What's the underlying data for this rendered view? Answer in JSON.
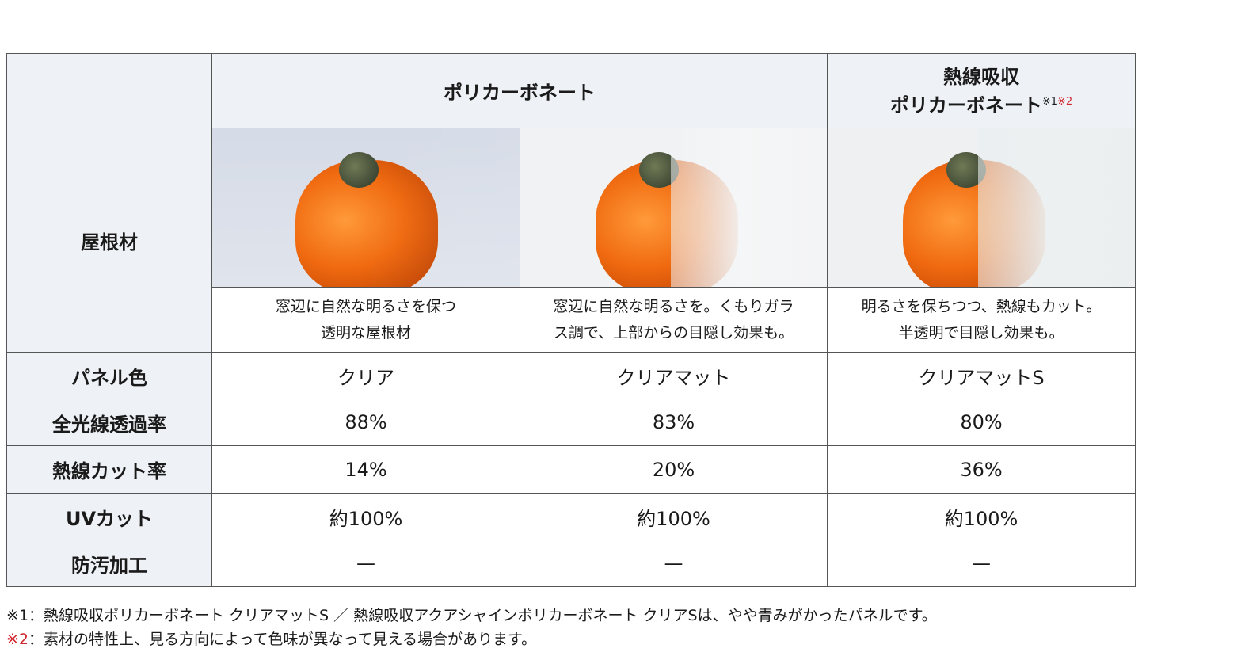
{
  "header": {
    "col1": "ポリカーボネート",
    "col2_line1": "熱線吸収",
    "col2_line2": "ポリカーボネート",
    "col2_note1": "※1",
    "col2_note2": "※2"
  },
  "rows": {
    "roof_label": "屋根材",
    "descriptions": [
      "窓辺に自然な明るさを保つ\n透明な屋根材",
      "窓辺に自然な明るさを。くもりガラ\nス調で、上部からの目隠し効果も。",
      "明るさを保ちつつ、熱線もカット。\n半透明で目隠し効果も。"
    ],
    "data": [
      {
        "label": "パネル色",
        "values": [
          "クリア",
          "クリアマット",
          "クリアマットS"
        ]
      },
      {
        "label": "全光線透過率",
        "values": [
          "88%",
          "83%",
          "80%"
        ]
      },
      {
        "label": "熱線カット率",
        "values": [
          "14%",
          "20%",
          "36%"
        ]
      },
      {
        "label": "UVカット",
        "values": [
          "約100%",
          "約100%",
          "約100%"
        ]
      },
      {
        "label": "防汚加工",
        "values": [
          "—",
          "—",
          "—"
        ]
      }
    ]
  },
  "notes": {
    "n1_mark": "※1",
    "n1_text": "：熱線吸収ポリカーボネート クリアマットS ／ 熱線吸収アクアシャインポリカーボネート クリアSは、やや青みがかったパネルです。",
    "n2_mark": "※2",
    "n2_text": "：素材の特性上、見る方向によって色味が異なって見える場合があります。"
  },
  "colors": {
    "header_bg": "#eef1f5",
    "note_red": "#d0262e",
    "pepper": "#f06a10"
  }
}
